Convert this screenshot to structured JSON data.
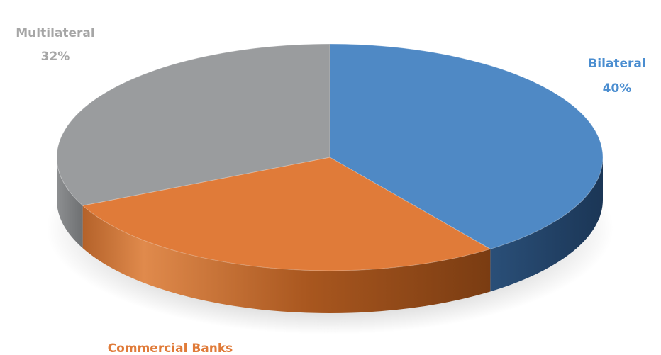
{
  "chart_data": {
    "type": "pie",
    "style": "3d",
    "title": "",
    "slices": [
      {
        "name": "Bilateral",
        "value": 40,
        "label": "40%",
        "color": "#4f89c5",
        "label_color": "#4a8dd0"
      },
      {
        "name": "Commercial Banks",
        "value": 28,
        "label": "",
        "color": "#e07b39",
        "label_color": "#e07b39"
      },
      {
        "name": "Multilateral",
        "value": 32,
        "label": "32%",
        "color": "#9a9c9e",
        "label_color": "#a6a6a6"
      }
    ],
    "start": "top",
    "direction": "clockwise",
    "legend": "none"
  }
}
